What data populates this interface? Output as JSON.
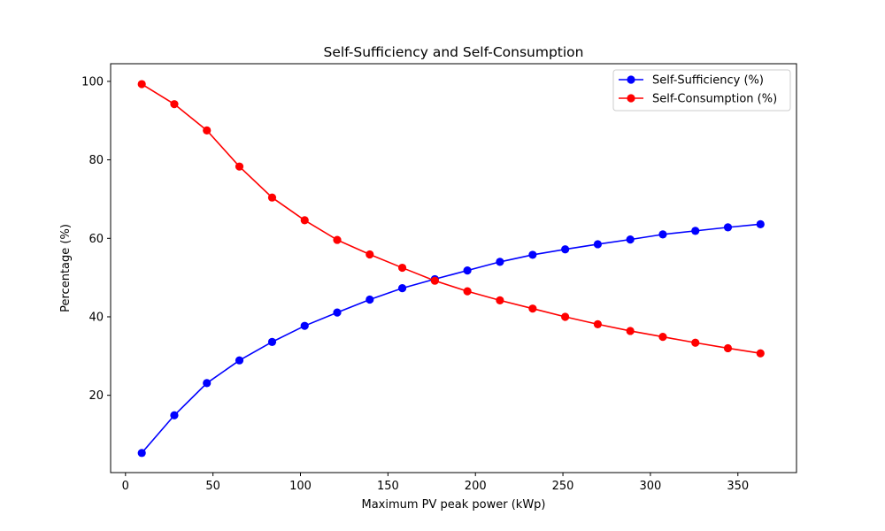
{
  "chart_data": {
    "type": "line",
    "title": "Self-Sufficiency and Self-Consumption",
    "xlabel": "Maximum PV peak power (kWp)",
    "ylabel": "Percentage (%)",
    "xlim": [
      -8.5,
      383.5
    ],
    "ylim": [
      0.3,
      104.5
    ],
    "xticks": [
      0,
      50,
      100,
      150,
      200,
      250,
      300,
      350
    ],
    "yticks": [
      20,
      40,
      60,
      80,
      100
    ],
    "grid": false,
    "legend_position": "upper-right",
    "x": [
      9.3,
      27.9,
      46.5,
      65.1,
      83.8,
      102.4,
      121.0,
      139.6,
      158.2,
      176.8,
      195.4,
      214.0,
      232.7,
      251.3,
      269.9,
      288.5,
      307.1,
      325.7,
      344.3,
      362.9
    ],
    "series": [
      {
        "name": "Self-Sufficiency (%)",
        "color": "#0000ff",
        "values": [
          5.3,
          14.9,
          23.1,
          28.9,
          33.6,
          37.7,
          41.1,
          44.4,
          47.3,
          49.6,
          51.8,
          54.0,
          55.8,
          57.2,
          58.5,
          59.7,
          61.0,
          61.9,
          62.8,
          63.6
        ]
      },
      {
        "name": "Self-Consumption (%)",
        "color": "#ff0000",
        "values": [
          99.3,
          94.2,
          87.5,
          78.3,
          70.4,
          64.6,
          59.6,
          55.9,
          52.5,
          49.2,
          46.5,
          44.2,
          42.1,
          40.0,
          38.1,
          36.4,
          34.9,
          33.4,
          32.0,
          30.7
        ]
      }
    ]
  }
}
